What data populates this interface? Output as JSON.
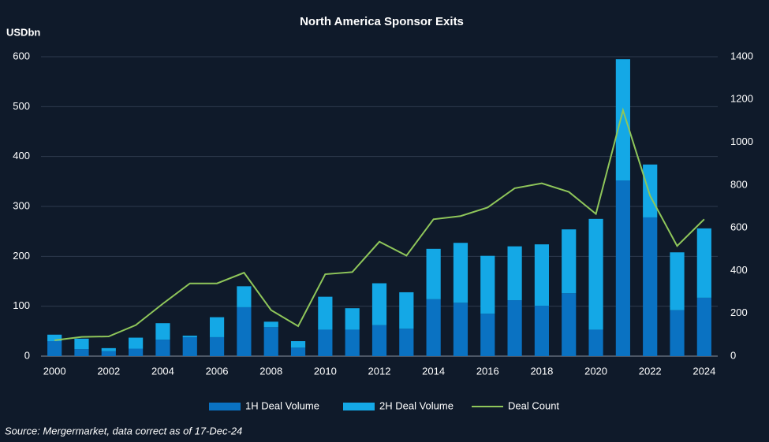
{
  "chart_data": {
    "type": "bar-line",
    "title": "North America Sponsor Exits",
    "ylabel": "USDbn",
    "source": "Source: Mergermarket, data correct as of 17-Dec-24",
    "categories": [
      "2000",
      null,
      "2002",
      null,
      "2004",
      null,
      "2006",
      null,
      "2008",
      null,
      "2010",
      null,
      "2012",
      null,
      "2014",
      null,
      "2016",
      null,
      "2018",
      null,
      "2020",
      null,
      "2022",
      null,
      "2024"
    ],
    "series": [
      {
        "name": "1H Deal Volume",
        "color": "#0a72c2",
        "values": [
          30,
          14,
          10,
          15,
          33,
          38,
          38,
          98,
          58,
          17,
          53,
          53,
          62,
          55,
          114,
          107,
          85,
          112,
          101,
          126,
          53,
          352,
          278,
          92,
          117
        ]
      },
      {
        "name": "2H Deal Volume",
        "color": "#14a8e6",
        "values": [
          13,
          21,
          6,
          22,
          33,
          3,
          40,
          42,
          11,
          13,
          66,
          43,
          84,
          73,
          101,
          120,
          116,
          108,
          123,
          128,
          222,
          243,
          106,
          116,
          139
        ]
      },
      {
        "name": "Deal Count",
        "color": "#8fc65a",
        "axis": "y2",
        "values": [
          74,
          90,
          92,
          145,
          245,
          340,
          340,
          390,
          215,
          140,
          383,
          393,
          535,
          470,
          640,
          655,
          695,
          785,
          808,
          768,
          665,
          1150,
          750,
          515,
          640
        ]
      }
    ],
    "ylim": [
      0,
      600
    ],
    "yticks": [
      0,
      100,
      200,
      300,
      400,
      500,
      600
    ],
    "y2lim": [
      0,
      1400
    ],
    "y2ticks": [
      0,
      200,
      400,
      600,
      800,
      1000,
      1200,
      1400
    ],
    "grid": true,
    "legend": "bottom"
  }
}
